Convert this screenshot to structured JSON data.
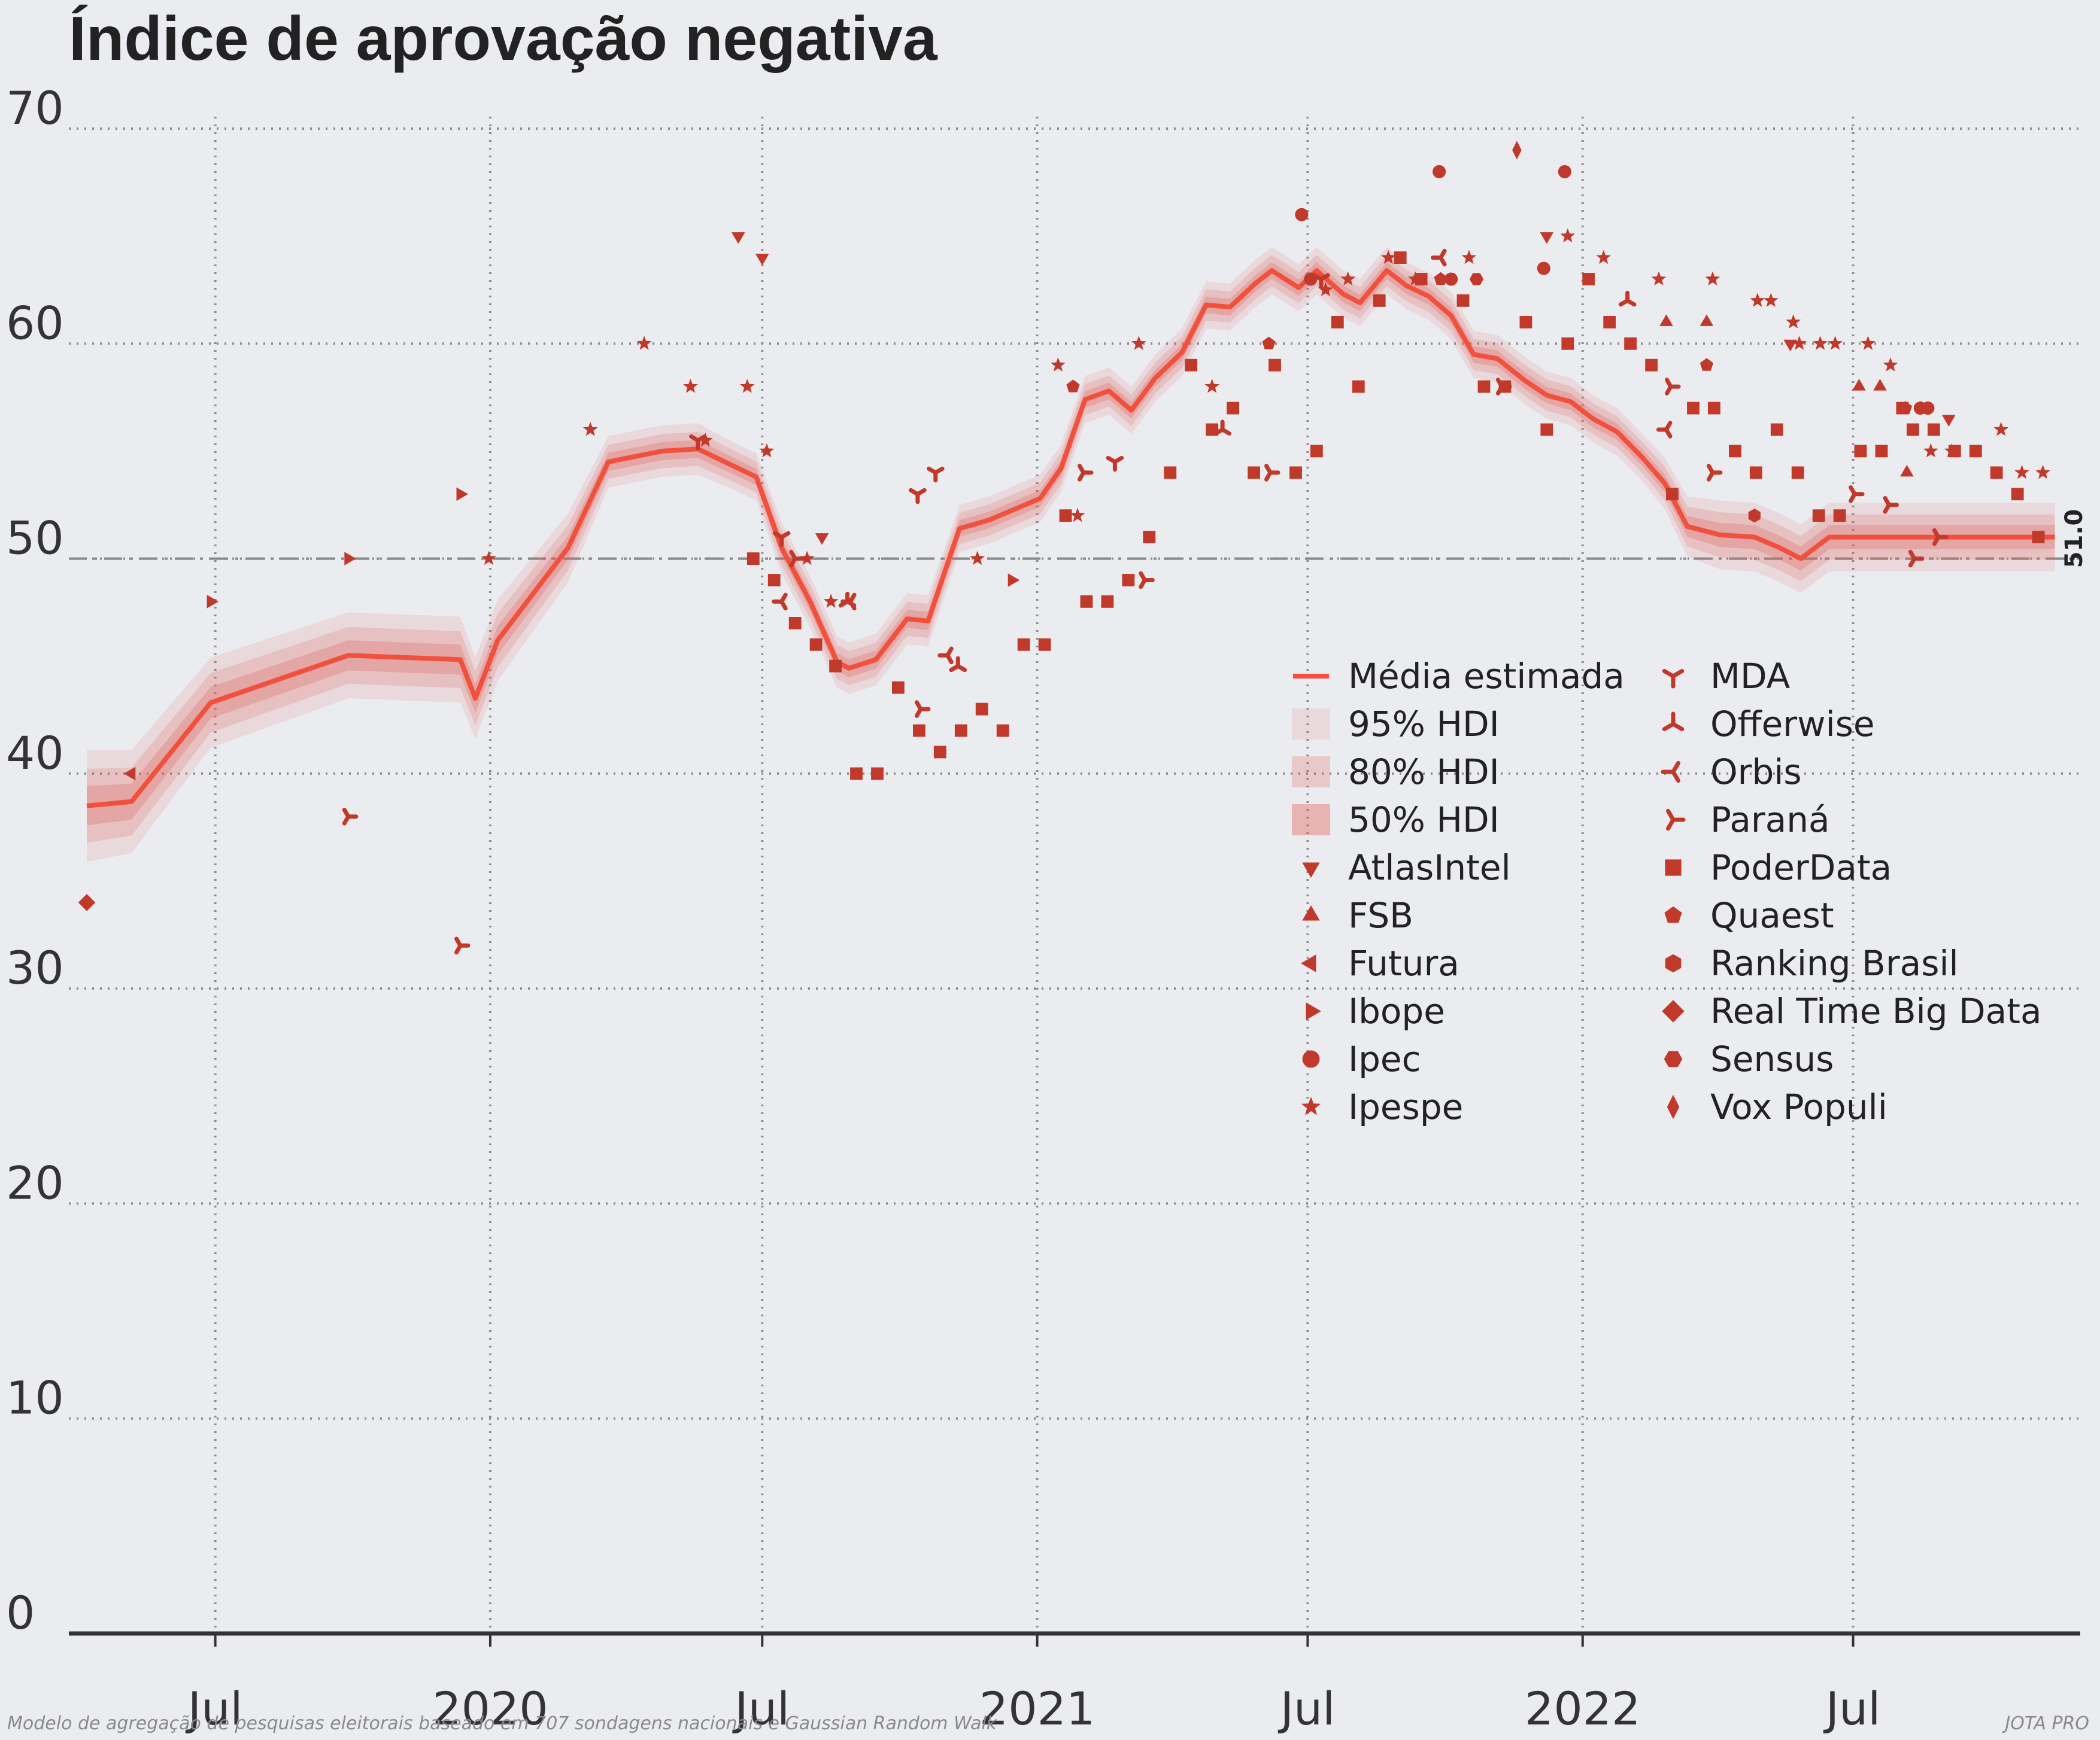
{
  "title": "Índice de aprovação negativa",
  "footer_left": "Modelo de agregação de pesquisas eleitorais baseado em 707 sondagens nacionais e Gaussian Random Walk",
  "footer_right": "JOTA PRO",
  "end_label": "51.0",
  "colors": {
    "background": "#ebecf0",
    "line": "#f0503c",
    "band": "#e06058",
    "marker": "#c0392b",
    "grid": "#8c8c8c",
    "axis": "#333333"
  },
  "chart_data": {
    "type": "line",
    "title": "Índice de aprovação negativa",
    "xlabel": "",
    "ylabel": "",
    "ylim": [
      0,
      70
    ],
    "xlim": [
      "2019-03-25",
      "2022-11-30"
    ],
    "yticks": [
      0,
      10,
      20,
      30,
      40,
      50,
      60,
      70
    ],
    "xticks": [
      {
        "date": "2019-07-01",
        "label": "Jul"
      },
      {
        "date": "2020-01-01",
        "label": "2020"
      },
      {
        "date": "2020-07-01",
        "label": "Jul"
      },
      {
        "date": "2021-01-01",
        "label": "2021"
      },
      {
        "date": "2021-07-01",
        "label": "Jul"
      },
      {
        "date": "2022-01-01",
        "label": "2022"
      },
      {
        "date": "2022-07-01",
        "label": "Jul"
      }
    ],
    "grid": true,
    "reference_line": 50,
    "legend_location": "center-right",
    "legend": [
      {
        "label": "Média estimada",
        "kind": "line"
      },
      {
        "label": "95% HDI",
        "kind": "band95"
      },
      {
        "label": "80% HDI",
        "kind": "band80"
      },
      {
        "label": "50% HDI",
        "kind": "band50"
      },
      {
        "label": "AtlasIntel",
        "kind": "marker",
        "shape": "tri-down"
      },
      {
        "label": "FSB",
        "kind": "marker",
        "shape": "tri-up"
      },
      {
        "label": "Futura",
        "kind": "marker",
        "shape": "tri-left"
      },
      {
        "label": "Ibope",
        "kind": "marker",
        "shape": "tri-right"
      },
      {
        "label": "Ipec",
        "kind": "marker",
        "shape": "circle"
      },
      {
        "label": "Ipespe",
        "kind": "marker",
        "shape": "star"
      },
      {
        "label": "MDA",
        "kind": "marker",
        "shape": "tri-y-down"
      },
      {
        "label": "Offerwise",
        "kind": "marker",
        "shape": "tri-y-up"
      },
      {
        "label": "Orbis",
        "kind": "marker",
        "shape": "tri-y-left"
      },
      {
        "label": "Paraná",
        "kind": "marker",
        "shape": "tri-y-right"
      },
      {
        "label": "PoderData",
        "kind": "marker",
        "shape": "square"
      },
      {
        "label": "Quaest",
        "kind": "marker",
        "shape": "pentagon"
      },
      {
        "label": "Ranking Brasil",
        "kind": "marker",
        "shape": "hexagon"
      },
      {
        "label": "Real Time Big Data",
        "kind": "marker",
        "shape": "diamond"
      },
      {
        "label": "Sensus",
        "kind": "marker",
        "shape": "hexagon2"
      },
      {
        "label": "Vox Populi",
        "kind": "marker",
        "shape": "thin-diamond"
      }
    ],
    "series": [
      {
        "name": "Média estimada",
        "x": [
          "2019-04-06",
          "2019-05-06",
          "2019-06-28",
          "2019-09-28",
          "2019-12-12",
          "2019-12-22",
          "2020-01-06",
          "2020-02-22",
          "2020-03-20",
          "2020-04-25",
          "2020-05-19",
          "2020-06-12",
          "2020-06-27",
          "2020-07-14",
          "2020-08-02",
          "2020-08-20",
          "2020-08-28",
          "2020-09-15",
          "2020-10-06",
          "2020-10-20",
          "2020-11-10",
          "2020-11-30",
          "2021-01-03",
          "2021-01-17",
          "2021-02-02",
          "2021-02-18",
          "2021-03-05",
          "2021-03-21",
          "2021-04-08",
          "2021-04-24",
          "2021-05-10",
          "2021-05-27",
          "2021-06-07",
          "2021-06-25",
          "2021-07-07",
          "2021-07-25",
          "2021-08-05",
          "2021-08-23",
          "2021-09-05",
          "2021-09-20",
          "2021-10-05",
          "2021-10-20",
          "2021-11-05",
          "2021-11-23",
          "2021-12-08",
          "2021-12-24",
          "2022-01-08",
          "2022-01-24",
          "2022-02-10",
          "2022-02-25",
          "2022-03-12",
          "2022-04-03",
          "2022-04-26",
          "2022-05-13",
          "2022-05-27",
          "2022-06-15",
          "2022-07-01",
          "2022-07-22",
          "2022-08-08",
          "2022-08-25",
          "2022-09-13",
          "2022-09-30",
          "2022-10-17",
          "2022-10-30",
          "2022-11-13"
        ],
        "values": [
          38.5,
          38.7,
          43.3,
          45.5,
          45.3,
          43.5,
          46.2,
          50.5,
          54.5,
          55.0,
          55.1,
          54.3,
          53.8,
          50.5,
          48.0,
          45.2,
          44.9,
          45.3,
          47.2,
          47.1,
          51.4,
          51.8,
          52.8,
          54.2,
          57.4,
          57.8,
          56.9,
          58.4,
          59.6,
          61.8,
          61.7,
          62.8,
          63.4,
          62.6,
          63.4,
          62.3,
          61.9,
          63.4,
          62.7,
          62.2,
          61.3,
          59.5,
          59.3,
          58.3,
          57.6,
          57.3,
          56.5,
          55.9,
          54.7,
          53.5,
          51.5,
          51.1,
          51.0,
          50.5,
          50.0,
          51.0,
          51.0,
          51.0,
          51.0,
          51.0,
          51.0,
          51.0,
          51.0,
          51.0,
          51.0
        ],
        "hdi_half_width_95": [
          2.6,
          2.4,
          2.1,
          2.0,
          2.0,
          1.9,
          1.9,
          1.6,
          1.2,
          1.2,
          1.2,
          1.1,
          1.1,
          1.2,
          1.2,
          1.2,
          1.2,
          1.2,
          1.2,
          1.2,
          1.1,
          1.1,
          1.1,
          1.1,
          1.1,
          1.1,
          1.1,
          1.1,
          1.1,
          1.1,
          1.1,
          1.1,
          1.1,
          1.1,
          1.1,
          1.1,
          1.1,
          1.1,
          1.1,
          1.1,
          1.1,
          1.1,
          1.1,
          1.1,
          1.1,
          1.1,
          1.1,
          1.1,
          1.1,
          1.2,
          1.4,
          1.6,
          1.6,
          1.6,
          1.6,
          1.6,
          1.6,
          1.6,
          1.6,
          1.6,
          1.6,
          1.6,
          1.6,
          1.6,
          1.6
        ]
      },
      {
        "name": "AtlasIntel",
        "x": [
          "2020-06-15",
          "2020-07-01",
          "2020-08-10",
          "2021-12-08",
          "2022-05-20",
          "2022-09-03"
        ],
        "values": [
          65,
          64,
          51,
          65,
          60,
          56.5
        ]
      },
      {
        "name": "FSB",
        "x": [
          "2022-02-26",
          "2022-03-25",
          "2022-07-05",
          "2022-07-19",
          "2022-08-06"
        ],
        "values": [
          61,
          61,
          58,
          58,
          54
        ]
      },
      {
        "name": "Futura",
        "x": [
          "2019-05-06"
        ],
        "values": [
          40
        ]
      },
      {
        "name": "Ibope",
        "x": [
          "2019-06-28",
          "2019-09-28",
          "2019-12-12",
          "2020-12-15"
        ],
        "values": [
          48,
          50,
          53,
          49
        ]
      },
      {
        "name": "Ipec",
        "x": [
          "2021-06-27",
          "2021-07-03",
          "2021-09-27",
          "2021-10-05",
          "2021-12-06",
          "2021-12-20",
          "2022-08-15",
          "2022-08-20"
        ],
        "values": [
          66,
          63,
          68,
          63,
          63.5,
          68,
          57,
          57
        ]
      },
      {
        "name": "Ipespe",
        "x": [
          "2019-12-31",
          "2020-03-08",
          "2020-04-13",
          "2020-05-14",
          "2020-05-24",
          "2020-06-21",
          "2020-07-04",
          "2020-07-31",
          "2020-08-16",
          "2020-11-22",
          "2021-01-15",
          "2021-01-28",
          "2021-03-10",
          "2021-04-28",
          "2021-07-13",
          "2021-07-28",
          "2021-08-24",
          "2021-09-11",
          "2021-10-17",
          "2021-12-22",
          "2022-01-15",
          "2022-02-21",
          "2022-03-29",
          "2022-04-28",
          "2022-05-07",
          "2022-05-22",
          "2022-05-26",
          "2022-06-09",
          "2022-06-19",
          "2022-07-11",
          "2022-07-26",
          "2022-08-22",
          "2022-09-05",
          "2022-10-08",
          "2022-10-22",
          "2022-11-05"
        ],
        "values": [
          50,
          56,
          60,
          58,
          55.5,
          58,
          55,
          50,
          48,
          50,
          59,
          52,
          60,
          58,
          62.5,
          63,
          64,
          63,
          64,
          65,
          64,
          63,
          63,
          62,
          62,
          61,
          60,
          60,
          60,
          60,
          59,
          55,
          55,
          56,
          54,
          54
        ]
      },
      {
        "name": "MDA",
        "x": [
          "2020-05-19",
          "2020-07-14",
          "2020-10-25",
          "2020-10-13",
          "2021-02-22",
          "2021-07-10"
        ],
        "values": [
          55.5,
          51,
          54,
          53,
          54.5,
          63
        ]
      },
      {
        "name": "Offerwise",
        "x": [
          "2020-08-27",
          "2020-11-09",
          "2021-05-05",
          "2022-01-31"
        ],
        "values": [
          48,
          45,
          56,
          62
        ]
      },
      {
        "name": "Orbis",
        "x": [
          "2020-07-14",
          "2020-08-29",
          "2020-11-02",
          "2021-09-28",
          "2022-02-26"
        ],
        "values": [
          48,
          48,
          45.5,
          64,
          56
        ]
      },
      {
        "name": "Paraná",
        "x": [
          "2019-09-28",
          "2019-12-12",
          "2020-07-23",
          "2020-10-15",
          "2021-02-01",
          "2021-03-14",
          "2021-06-06",
          "2021-11-08",
          "2022-03-01",
          "2022-03-29",
          "2022-07-02",
          "2022-07-25",
          "2022-08-11",
          "2022-08-27"
        ],
        "values": [
          38,
          32,
          50,
          43,
          54,
          49,
          54,
          58,
          58,
          54,
          53,
          52.5,
          50,
          51
        ]
      },
      {
        "name": "PoderData",
        "x": [
          "2020-06-25",
          "2020-07-09",
          "2020-07-23",
          "2020-08-06",
          "2020-08-19",
          "2020-09-02",
          "2020-09-16",
          "2020-09-30",
          "2020-10-14",
          "2020-10-28",
          "2020-11-11",
          "2020-11-25",
          "2020-12-09",
          "2020-12-23",
          "2021-01-06",
          "2021-01-20",
          "2021-02-03",
          "2021-02-17",
          "2021-03-03",
          "2021-03-17",
          "2021-03-31",
          "2021-04-14",
          "2021-04-28",
          "2021-05-12",
          "2021-05-26",
          "2021-06-09",
          "2021-06-23",
          "2021-07-07",
          "2021-07-21",
          "2021-08-04",
          "2021-08-18",
          "2021-09-01",
          "2021-09-15",
          "2021-10-13",
          "2021-10-27",
          "2021-11-10",
          "2021-11-24",
          "2021-12-08",
          "2021-12-22",
          "2022-01-05",
          "2022-01-19",
          "2022-02-02",
          "2022-02-16",
          "2022-03-02",
          "2022-03-16",
          "2022-03-30",
          "2022-04-13",
          "2022-04-27",
          "2022-05-11",
          "2022-05-25",
          "2022-06-08",
          "2022-06-22",
          "2022-07-06",
          "2022-07-20",
          "2022-08-03",
          "2022-08-10",
          "2022-08-24",
          "2022-09-07",
          "2022-09-21",
          "2022-10-05",
          "2022-10-19",
          "2022-11-02"
        ],
        "values": [
          50,
          49,
          47,
          46,
          45,
          40,
          40,
          44,
          42,
          41,
          42,
          43,
          42,
          46,
          46,
          52,
          48,
          48,
          49,
          51,
          54,
          59,
          56,
          57,
          54,
          59,
          54,
          55,
          61,
          58,
          62,
          64,
          63,
          62,
          58,
          58,
          61,
          56,
          60,
          63,
          61,
          60,
          59,
          53,
          57,
          57,
          55,
          54,
          56,
          54,
          52,
          52,
          55,
          55,
          57,
          56,
          56,
          55,
          55,
          54,
          53,
          51
        ]
      },
      {
        "name": "Quaest",
        "x": [
          "2021-01-25",
          "2021-06-05",
          "2021-09-28",
          "2022-03-25",
          "2022-08-05",
          "2022-08-15"
        ],
        "values": [
          58,
          60,
          63,
          59,
          57,
          57
        ]
      },
      {
        "name": "Ranking Brasil",
        "x": [
          "2022-04-26"
        ],
        "values": [
          52
        ]
      },
      {
        "name": "Real Time Big Data",
        "x": [
          "2019-04-06"
        ],
        "values": [
          34
        ]
      },
      {
        "name": "Sensus",
        "x": [
          "2021-10-22"
        ],
        "values": [
          63
        ]
      },
      {
        "name": "Vox Populi",
        "x": [
          "2021-11-18"
        ],
        "values": [
          69
        ]
      }
    ]
  }
}
